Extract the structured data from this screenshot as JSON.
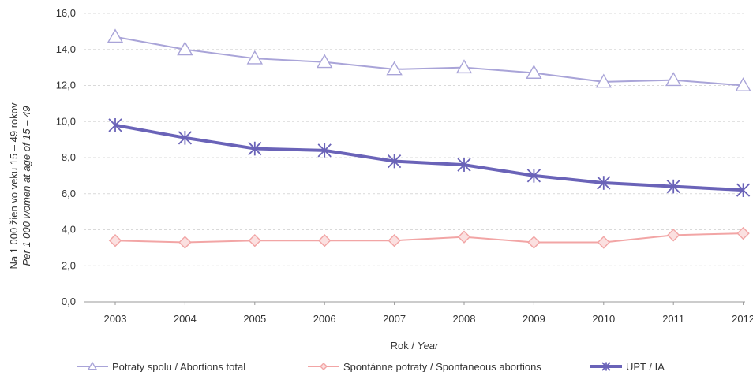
{
  "chart_data": {
    "type": "line",
    "xlabel": "Rok",
    "xlabel_en": "Year",
    "ylabel": "Na 1 000 žien vo veku 15 – 49 rokov",
    "ylabel_en": "Per 1 000 women at age of 15 – 49",
    "ylim": [
      0,
      16
    ],
    "yticks": [
      "0,0",
      "2,0",
      "4,0",
      "6,0",
      "8,0",
      "10,0",
      "12,0",
      "14,0",
      "16,0"
    ],
    "categories": [
      "2003",
      "2004",
      "2005",
      "2006",
      "2007",
      "2008",
      "2009",
      "2010",
      "2011",
      "2012"
    ],
    "grid": true,
    "legend_position": "bottom",
    "series": [
      {
        "name": "Potraty spolu / Abortions total",
        "color": "#a9a4d8",
        "marker": "triangle",
        "values": [
          14.7,
          14.0,
          13.5,
          13.3,
          12.9,
          13.0,
          12.7,
          12.2,
          12.3,
          12.0
        ]
      },
      {
        "name": "Spontánne potraty / Spontaneous abortions",
        "color": "#f2a5a5",
        "marker": "diamond",
        "values": [
          3.4,
          3.3,
          3.4,
          3.4,
          3.4,
          3.6,
          3.3,
          3.3,
          3.7,
          3.8
        ]
      },
      {
        "name": "UPT / IA",
        "color": "#6a63b8",
        "marker": "asterisk",
        "values": [
          9.8,
          9.1,
          8.5,
          8.4,
          7.8,
          7.6,
          7.0,
          6.6,
          6.4,
          6.2
        ]
      }
    ]
  }
}
